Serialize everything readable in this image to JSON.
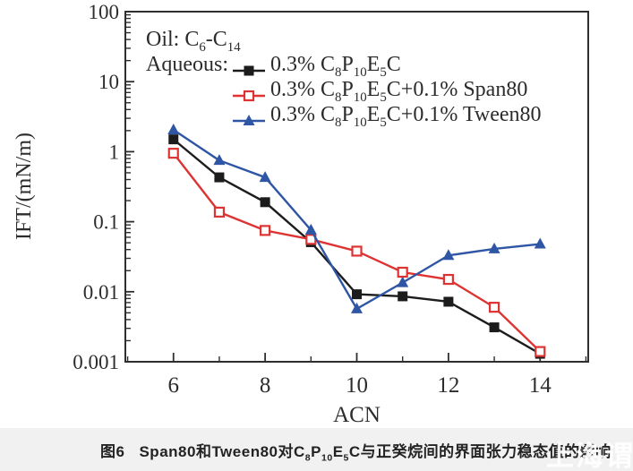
{
  "figure": {
    "caption_label": "图6",
    "caption_text": "Span80和Tween80对C~8~P~10~E~5~C与正癸烷间的界面张力稳态值的影响",
    "watermark": "上海谓数"
  },
  "colors": {
    "axis": "#2e2e2e",
    "text": "#2d2d2d",
    "series_black": "#1c1c1c",
    "series_red": "#dd3332",
    "series_blue": "#2e56a5",
    "caption_bg": "#f1f1f1"
  },
  "chart_data": {
    "type": "line",
    "title": "",
    "xlabel": "ACN",
    "ylabel": "IFT/(mN/m)",
    "x_scale": "linear",
    "y_scale": "log",
    "x_range": [
      4.95,
      15.05
    ],
    "y_range": [
      0.001,
      100
    ],
    "x_major_ticks": [
      6,
      8,
      10,
      12,
      14
    ],
    "x_minor_ticks": [
      5,
      7,
      9,
      11,
      13,
      15
    ],
    "y_major_ticks": [
      100,
      10,
      1,
      0.1,
      0.01,
      0.001
    ],
    "y_major_tick_labels": [
      "100",
      "10",
      "1",
      "0.1",
      "0.01",
      "0.001"
    ],
    "grid": false,
    "legend": {
      "position": "top-left-inside",
      "oil_line": "Oil: C~6~-C~14~",
      "aqueous_prefix": "Aqueous:"
    },
    "x": [
      6,
      7,
      8,
      9,
      10,
      11,
      12,
      13,
      14
    ],
    "series": [
      {
        "name": "0.3% C8P10E5C",
        "label": "0.3% C~8~P~10~E~5~C",
        "color": "#1c1c1c",
        "marker": "filled-square",
        "values": [
          1.5,
          0.43,
          0.19,
          0.051,
          0.0092,
          0.0086,
          0.0072,
          0.0031,
          0.0013
        ]
      },
      {
        "name": "0.3% C8P10E5C+0.1% Span80",
        "label": "0.3% C~8~P~10~E~5~C+0.1% Span80",
        "color": "#dd3332",
        "marker": "open-square",
        "values": [
          0.95,
          0.137,
          0.075,
          0.056,
          0.038,
          0.019,
          0.015,
          0.006,
          0.0014
        ]
      },
      {
        "name": "0.3% C8P10E5C+0.1% Tween80",
        "label": "0.3% C~8~P~10~E~5~C+0.1% Tween80",
        "color": "#2e56a5",
        "marker": "filled-triangle",
        "values": [
          2.05,
          0.75,
          0.43,
          0.076,
          0.0057,
          0.0135,
          0.033,
          0.041,
          0.048
        ]
      }
    ]
  }
}
